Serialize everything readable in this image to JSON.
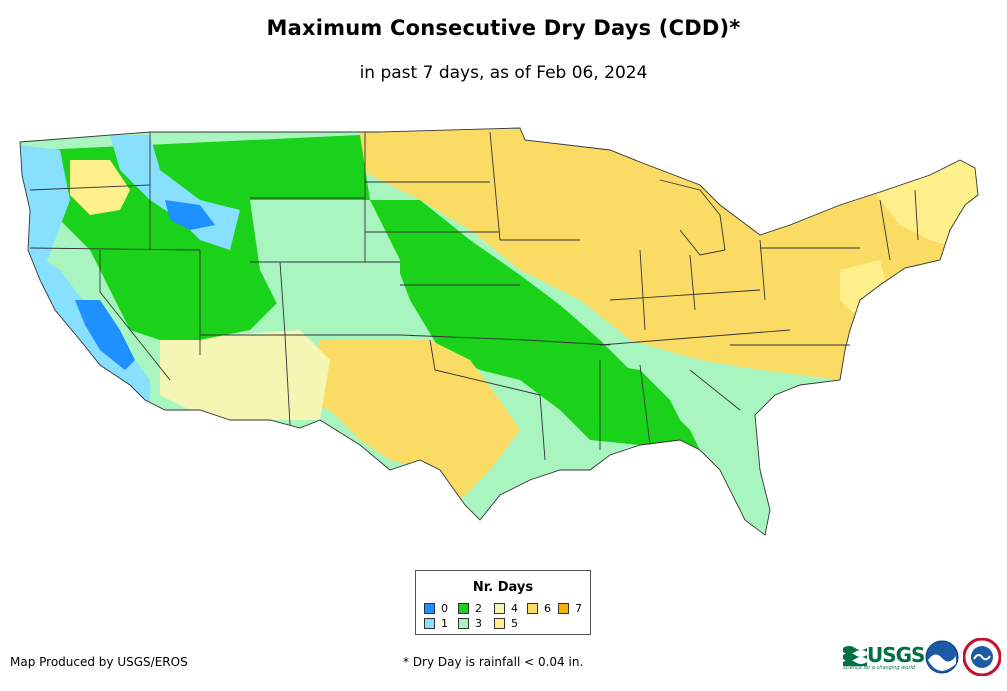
{
  "title": "Maximum Consecutive Dry Days (CDD)*",
  "subtitle": "in past 7 days, as of Feb 06, 2024",
  "legend": {
    "title": "Nr. Days",
    "items": [
      {
        "label": "0",
        "color": "#1e90ff"
      },
      {
        "label": "1",
        "color": "#87e0ff"
      },
      {
        "label": "2",
        "color": "#19d219"
      },
      {
        "label": "3",
        "color": "#a8f5c0"
      },
      {
        "label": "4",
        "color": "#f5f5b4"
      },
      {
        "label": "5",
        "color": "#fff08c"
      },
      {
        "label": "6",
        "color": "#fadc64"
      },
      {
        "label": "7",
        "color": "#f5b400"
      }
    ]
  },
  "footer": {
    "credit": "Map Produced by USGS/EROS",
    "footnote": "* Dry Day is rainfall < 0.04 in.",
    "usgs_logo_text": "USGS",
    "usgs_tagline": "science for a changing world",
    "noaa_logo": "noaa-logo",
    "nws_logo": "nws-logo"
  },
  "map": {
    "region": "Contiguous United States",
    "colors": {
      "ocean": "#ffffff",
      "state_border": "#333333"
    }
  }
}
